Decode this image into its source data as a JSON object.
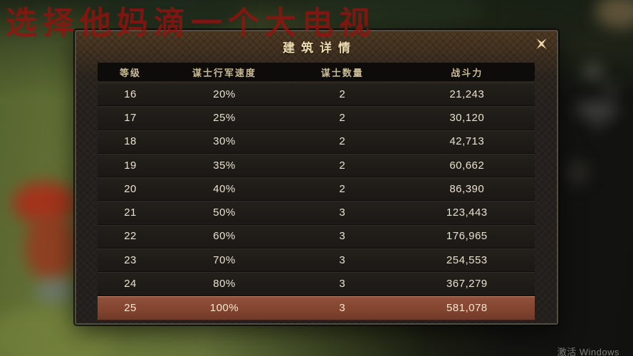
{
  "watermark": {
    "text": "选择他妈滴一个大电视"
  },
  "system": {
    "activate_watermark": "激活 Windows"
  },
  "dialog": {
    "title": "建筑详情",
    "close_icon": "ornate-x-icon",
    "table": {
      "headers": [
        "等级",
        "谋士行军速度",
        "谋士数量",
        "战斗力"
      ],
      "columns": [
        "level",
        "speed",
        "count",
        "power"
      ],
      "rows": [
        {
          "level": "16",
          "speed": "20%",
          "count": "2",
          "power": "21,243",
          "highlight": false
        },
        {
          "level": "17",
          "speed": "25%",
          "count": "2",
          "power": "30,120",
          "highlight": false
        },
        {
          "level": "18",
          "speed": "30%",
          "count": "2",
          "power": "42,713",
          "highlight": false
        },
        {
          "level": "19",
          "speed": "35%",
          "count": "2",
          "power": "60,662",
          "highlight": false
        },
        {
          "level": "20",
          "speed": "40%",
          "count": "2",
          "power": "86,390",
          "highlight": false
        },
        {
          "level": "21",
          "speed": "50%",
          "count": "3",
          "power": "123,443",
          "highlight": false
        },
        {
          "level": "22",
          "speed": "60%",
          "count": "3",
          "power": "176,965",
          "highlight": false
        },
        {
          "level": "23",
          "speed": "70%",
          "count": "3",
          "power": "254,553",
          "highlight": false
        },
        {
          "level": "24",
          "speed": "80%",
          "count": "3",
          "power": "367,279",
          "highlight": false
        },
        {
          "level": "25",
          "speed": "100%",
          "count": "3",
          "power": "581,078",
          "highlight": true
        }
      ]
    }
  },
  "colors": {
    "title_gold": "#f0ddb0",
    "header_text": "#c9bb97",
    "row_text": "#eae1cf",
    "highlight_row": "#8a4c3a",
    "watermark_red": "#96120e",
    "dialog_wood": "#443321"
  }
}
